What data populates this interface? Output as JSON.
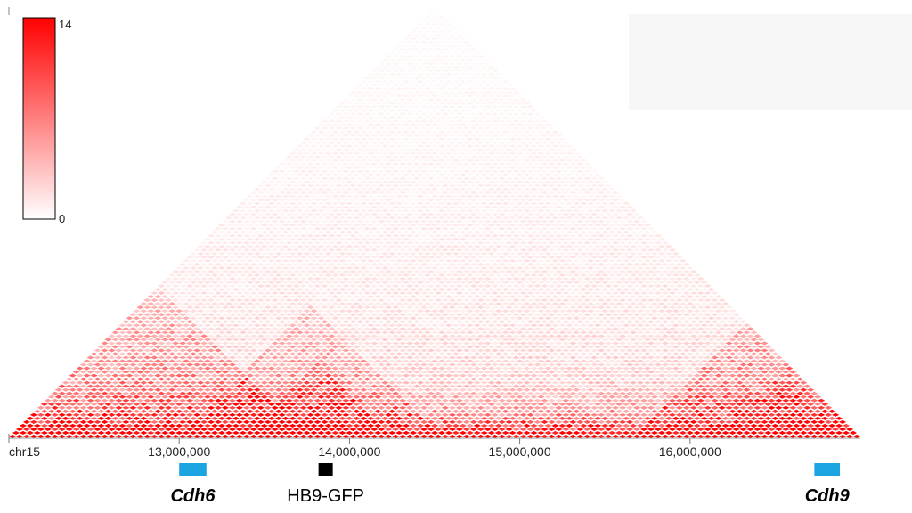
{
  "chart_data": {
    "type": "heatmap",
    "subtype": "triangular-contact-map",
    "chromosome_label": "chr15",
    "x_range_bp": [
      12000000,
      17000000
    ],
    "bin_count": 120,
    "x_ticks": [
      {
        "value": 13000000,
        "label": "13,000,000"
      },
      {
        "value": 14000000,
        "label": "14,000,000"
      },
      {
        "value": 15000000,
        "label": "15,000,000"
      },
      {
        "value": 16000000,
        "label": "16,000,000"
      }
    ],
    "colorbar": {
      "min_label": "0",
      "max_label": "14",
      "min": 0,
      "max": 14,
      "low_color": "#ffffff",
      "high_color": "#ff0000",
      "placement": "top-left"
    },
    "domains": [
      {
        "start_bp": 12000000,
        "end_bp": 13700000,
        "strength": 0.75
      },
      {
        "start_bp": 13000000,
        "end_bp": 14500000,
        "strength": 0.55
      },
      {
        "start_bp": 13400000,
        "end_bp": 14200000,
        "strength": 0.7
      },
      {
        "start_bp": 15700000,
        "end_bp": 17000000,
        "strength": 0.75
      },
      {
        "start_bp": 16200000,
        "end_bp": 17000000,
        "strength": 0.4
      }
    ],
    "annotations": [
      {
        "label": "Cdh6",
        "start_bp": 13000000,
        "end_bp": 13160000,
        "color": "#1ba4e0",
        "style": "italic-bold"
      },
      {
        "label": "HB9-GFP",
        "start_bp": 13820000,
        "end_bp": 13900000,
        "color": "#000000",
        "style": "normal"
      },
      {
        "label": "Cdh9",
        "start_bp": 16730000,
        "end_bp": 16880000,
        "color": "#1ba4e0",
        "style": "italic-bold"
      }
    ]
  }
}
